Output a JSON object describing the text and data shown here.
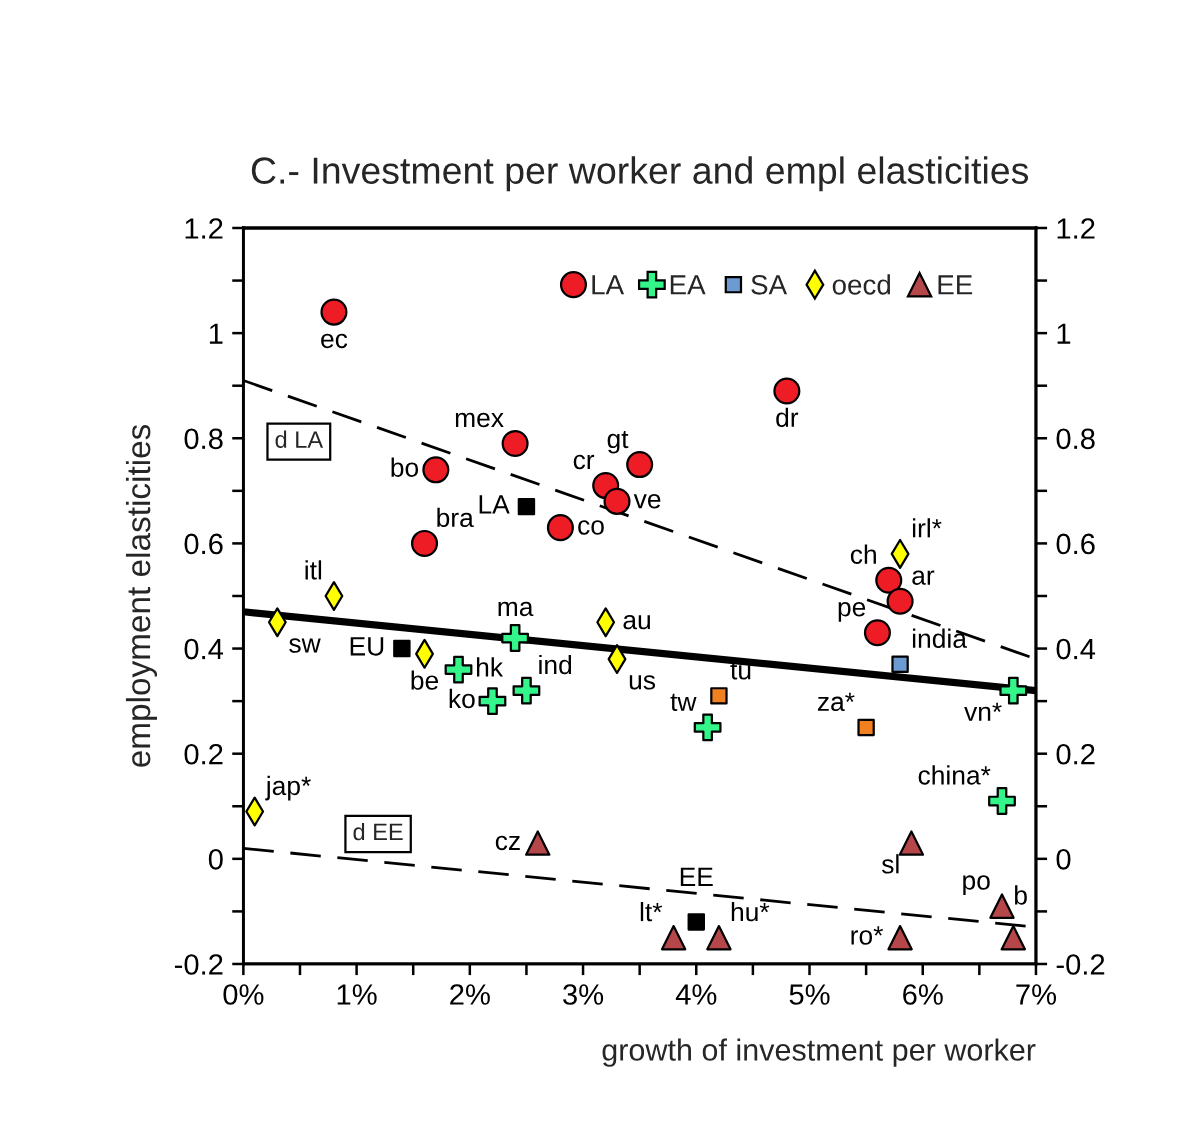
{
  "chart_data": {
    "type": "scatter",
    "title": "C.- Investment per worker and empl elasticities",
    "xlabel": "growth of investment per worker",
    "ylabel": "employment elasticities",
    "xlim": [
      0,
      7
    ],
    "xticks": [
      {
        "value": 0,
        "label": "0%"
      },
      {
        "value": 0.5,
        "label": null
      },
      {
        "value": 1,
        "label": "1%"
      },
      {
        "value": 1.5,
        "label": null
      },
      {
        "value": 2,
        "label": "2%"
      },
      {
        "value": 2.5,
        "label": null
      },
      {
        "value": 3,
        "label": "3%"
      },
      {
        "value": 3.5,
        "label": null
      },
      {
        "value": 4,
        "label": "4%"
      },
      {
        "value": 4.5,
        "label": null
      },
      {
        "value": 5,
        "label": "5%"
      },
      {
        "value": 5.5,
        "label": null
      },
      {
        "value": 6,
        "label": "6%"
      },
      {
        "value": 6.5,
        "label": null
      },
      {
        "value": 7,
        "label": "7%"
      }
    ],
    "ylim": [
      -0.2,
      1.2
    ],
    "yticks": [
      -0.2,
      {
        "value": -0.1,
        "label": null
      },
      0,
      {
        "value": 0.1,
        "label": null
      },
      0.2,
      {
        "value": 0.3,
        "label": null
      },
      0.4,
      {
        "value": 0.5,
        "label": null
      },
      0.6,
      {
        "value": 0.7,
        "label": null
      },
      0.8,
      {
        "value": 0.9,
        "label": null
      },
      1,
      {
        "value": 1.1,
        "label": null
      },
      1.2
    ],
    "y2lim": [
      -0.2,
      1.2
    ],
    "y2ticks": [
      -0.2,
      {
        "value": -0.1,
        "label": null
      },
      0,
      {
        "value": 0.1,
        "label": null
      },
      0.2,
      {
        "value": 0.3,
        "label": null
      },
      0.4,
      {
        "value": 0.5,
        "label": null
      },
      0.6,
      {
        "value": 0.7,
        "label": null
      },
      0.8,
      {
        "value": 0.9,
        "label": null
      },
      1,
      {
        "value": 1.1,
        "label": null
      },
      1.2
    ],
    "legend": "top right",
    "series": [
      {
        "name": "LA",
        "color": "#ee1c25",
        "marker": "circle",
        "x": [
          0.8,
          1.7,
          1.6,
          2.4,
          2.8,
          3.2,
          3.5,
          3.3,
          4.8,
          5.7,
          5.8,
          5.6
        ],
        "values": [
          1.04,
          0.74,
          0.6,
          0.79,
          0.63,
          0.71,
          0.75,
          0.68,
          0.89,
          0.53,
          0.49,
          0.43
        ],
        "value_labels": [
          "ec",
          "bo",
          "bra",
          "mex",
          "co",
          "cr",
          "gt",
          "ve",
          "dr",
          "ch",
          "ar",
          "pe"
        ]
      },
      {
        "name": "EA",
        "color": "#33f58a",
        "marker": "cross",
        "x": [
          2.4,
          1.9,
          2.2,
          2.5,
          4.1,
          6.8,
          6.7
        ],
        "values": [
          0.42,
          0.36,
          0.3,
          0.32,
          0.25,
          0.32,
          0.11
        ],
        "value_labels": [
          "ma",
          "hk",
          "ko",
          "ind",
          "tw",
          "vn*",
          "china*"
        ]
      },
      {
        "name": "SA",
        "color": "#6b9bd1",
        "marker": "square",
        "x": [
          5.8
        ],
        "values": [
          0.37
        ],
        "value_labels": [
          "india"
        ]
      },
      {
        "name": "oecd",
        "color": "#ffff00",
        "marker": "diamond",
        "x": [
          0.8,
          0.3,
          1.6,
          3.2,
          3.3,
          5.8,
          0.1
        ],
        "values": [
          0.5,
          0.45,
          0.39,
          0.45,
          0.38,
          0.58,
          0.09
        ],
        "value_labels": [
          "itl",
          "sw",
          "be",
          "au",
          "us",
          "irl*",
          "jap*"
        ]
      },
      {
        "name": "EE",
        "color": "#b5474b",
        "marker": "triangle",
        "x": [
          2.6,
          5.9,
          3.8,
          4.2,
          5.8,
          6.7,
          6.8
        ],
        "values": [
          0.03,
          0.03,
          -0.15,
          -0.15,
          -0.15,
          -0.09,
          -0.15
        ],
        "value_labels": [
          "cz",
          "sl",
          "lt*",
          "hu*",
          "ro*",
          "po",
          "b"
        ]
      },
      {
        "color": "#f08020",
        "marker": "square",
        "x": [
          4.2,
          5.5
        ],
        "values": [
          0.31,
          0.25
        ],
        "value_labels": [
          "tu",
          "za*"
        ]
      },
      {
        "color": "#000000",
        "marker": "square",
        "x": [
          2.5,
          1.4,
          4.0
        ],
        "values": [
          0.67,
          0.4,
          -0.12
        ],
        "value_labels": [
          "LA",
          "EU",
          "EE"
        ]
      },
      {
        "type": "line",
        "name": "d LA",
        "color": "#000000",
        "line_style": "dashed",
        "x": [
          0,
          7
        ],
        "values": [
          0.91,
          0.38
        ]
      },
      {
        "type": "line",
        "color": "#000000",
        "line_style": "solid",
        "x": [
          0,
          7
        ],
        "values": [
          0.47,
          0.32
        ]
      },
      {
        "type": "line",
        "name": "d EE",
        "color": "#000000",
        "line_style": "dashed",
        "x": [
          0,
          7
        ],
        "values": [
          0.02,
          -0.13
        ]
      }
    ]
  }
}
